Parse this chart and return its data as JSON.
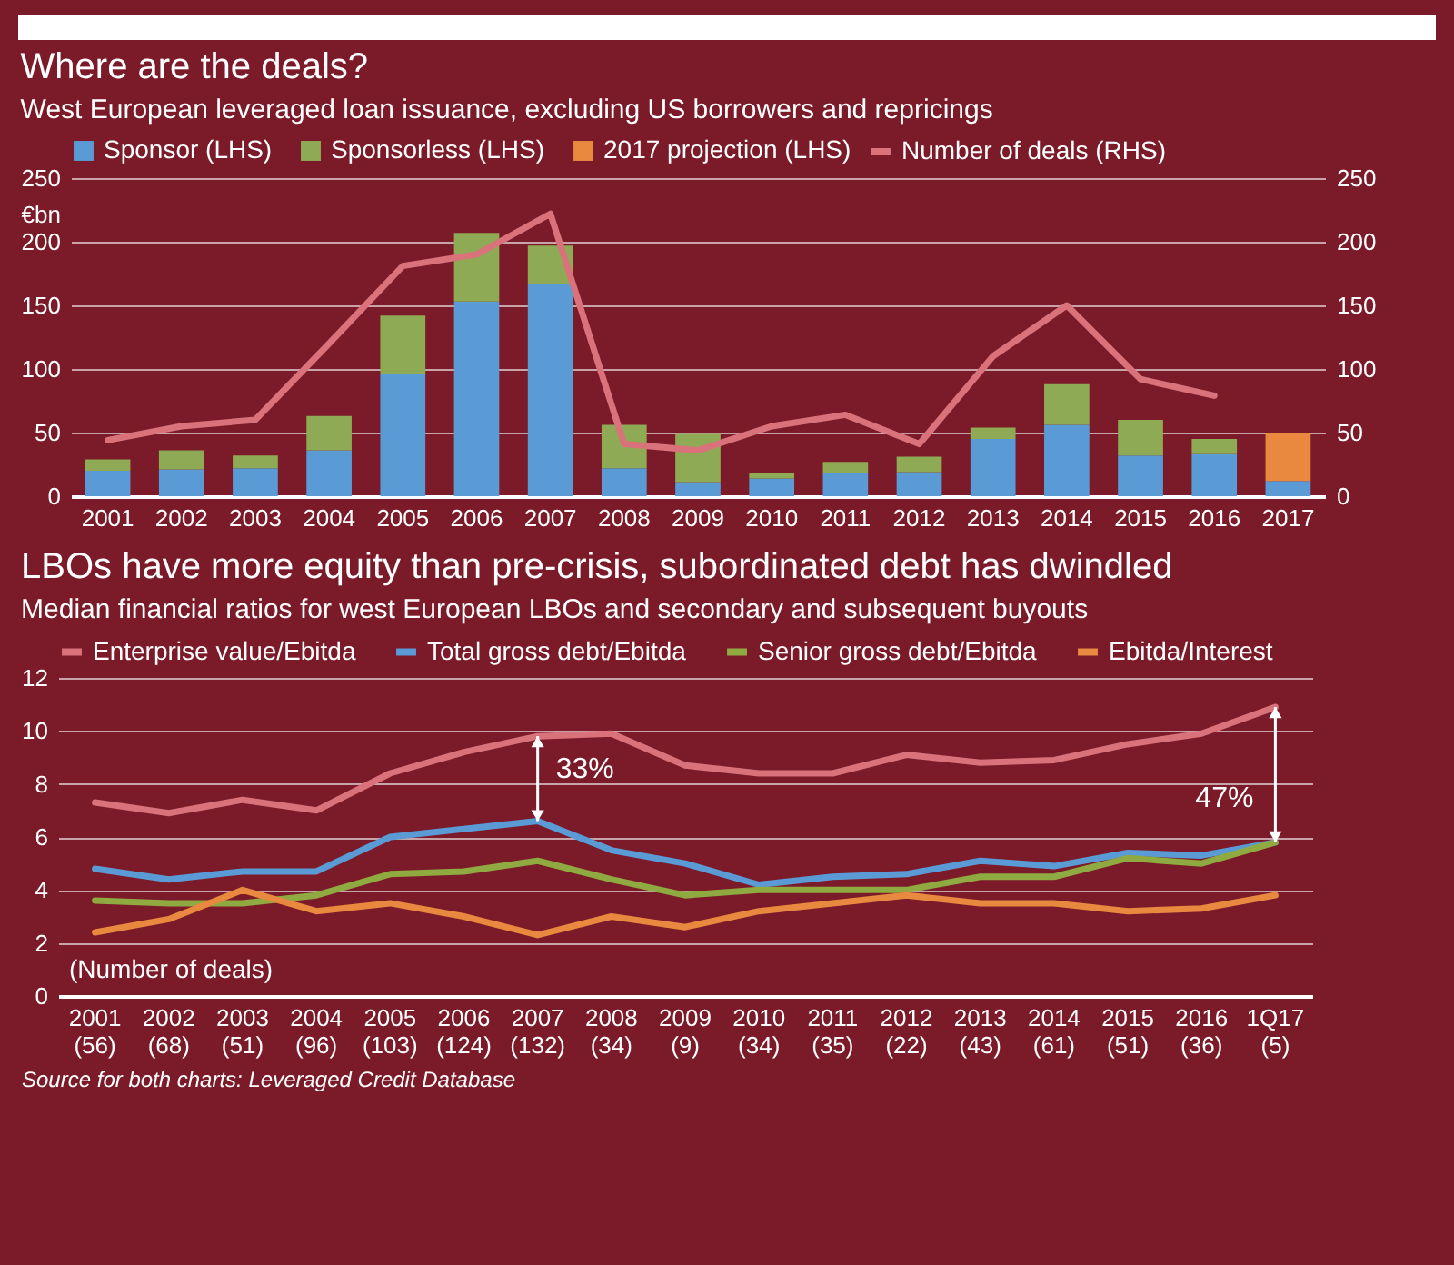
{
  "chart_data": [
    {
      "type": "bar",
      "title": "Where are the deals?",
      "subtitle": "West European leveraged loan issuance, excluding US borrowers and repricings",
      "ylabel": "€bn",
      "categories": [
        "2001",
        "2002",
        "2003",
        "2004",
        "2005",
        "2006",
        "2007",
        "2008",
        "2009",
        "2010",
        "2011",
        "2012",
        "2013",
        "2014",
        "2015",
        "2016",
        "2017"
      ],
      "stacked": true,
      "series": [
        {
          "name": "Sponsor (LHS)",
          "color": "#5b9bd5",
          "values": [
            20,
            21,
            22,
            36,
            96,
            153,
            167,
            22,
            11,
            14,
            18,
            19,
            45,
            56,
            32,
            33,
            12
          ]
        },
        {
          "name": "Sponsorless (LHS)",
          "color": "#8faa55",
          "values": [
            9,
            15,
            10,
            27,
            46,
            54,
            30,
            34,
            38,
            4,
            9,
            12,
            9,
            32,
            28,
            12,
            null
          ]
        },
        {
          "name": "2017 projection (LHS)",
          "color": "#e8893f",
          "values": [
            null,
            null,
            null,
            null,
            null,
            null,
            null,
            null,
            null,
            null,
            null,
            null,
            null,
            null,
            null,
            null,
            38
          ]
        },
        {
          "name": "Number of deals (RHS)",
          "type": "line",
          "axis": "y2",
          "color": "#d9727a",
          "values": [
            44,
            55,
            60,
            120,
            181,
            190,
            222,
            41,
            36,
            55,
            64,
            41,
            110,
            150,
            92,
            79,
            null
          ]
        }
      ],
      "ylim": [
        0,
        250
      ],
      "yticks": [
        0,
        50,
        100,
        150,
        200,
        250
      ],
      "y2lim": [
        0,
        250
      ],
      "y2ticks": [
        0,
        50,
        100,
        150,
        200,
        250
      ],
      "grid": "y",
      "legend": "top"
    },
    {
      "type": "line",
      "title": "LBOs have more equity than pre-crisis, subordinated debt has dwindled",
      "subtitle": "Median financial ratios for west European LBOs and secondary and subsequent buyouts",
      "categories": [
        "2001 (56)",
        "2002 (68)",
        "2003 (51)",
        "2004 (96)",
        "2005 (103)",
        "2006 (124)",
        "2007 (132)",
        "2008 (34)",
        "2009 (9)",
        "2010 (34)",
        "2011 (35)",
        "2012 (22)",
        "2013 (43)",
        "2014 (61)",
        "2015 (51)",
        "2016 (36)",
        "1Q17 (5)"
      ],
      "series": [
        {
          "name": "Enterprise value/Ebitda",
          "color": "#d9727a",
          "values": [
            7.3,
            6.9,
            7.4,
            7.0,
            8.4,
            9.2,
            9.8,
            9.9,
            8.7,
            8.4,
            8.4,
            9.1,
            8.8,
            8.9,
            9.5,
            9.9,
            10.9
          ]
        },
        {
          "name": "Total gross debt/Ebitda",
          "color": "#5b9bd5",
          "values": [
            4.8,
            4.4,
            4.7,
            4.7,
            6.0,
            6.3,
            6.6,
            5.5,
            5.0,
            4.2,
            4.5,
            4.6,
            5.1,
            4.9,
            5.4,
            5.3,
            5.8
          ]
        },
        {
          "name": "Senior gross debt/Ebitda",
          "color": "#8faa40",
          "values": [
            3.6,
            3.5,
            3.5,
            3.8,
            4.6,
            4.7,
            5.1,
            4.4,
            3.8,
            4.0,
            4.0,
            4.0,
            4.5,
            4.5,
            5.2,
            5.0,
            5.8
          ]
        },
        {
          "name": "Ebitda/Interest",
          "color": "#e8893f",
          "values": [
            2.4,
            2.9,
            4.0,
            3.2,
            3.5,
            3.0,
            2.3,
            3.0,
            2.6,
            3.2,
            3.5,
            3.8,
            3.5,
            3.5,
            3.2,
            3.3,
            3.8
          ]
        }
      ],
      "ylim": [
        0,
        12
      ],
      "yticks": [
        0,
        2,
        4,
        6,
        8,
        10,
        12
      ],
      "grid": "y",
      "legend": "top",
      "annotations": [
        {
          "text": "33%",
          "x": "2007 (132)",
          "y": 9.8
        },
        {
          "text": "47%",
          "x": "1Q17 (5)",
          "y": 10.9
        },
        "(Number of deals)",
        "Source for both charts: Leveraged Credit Database"
      ]
    }
  ]
}
